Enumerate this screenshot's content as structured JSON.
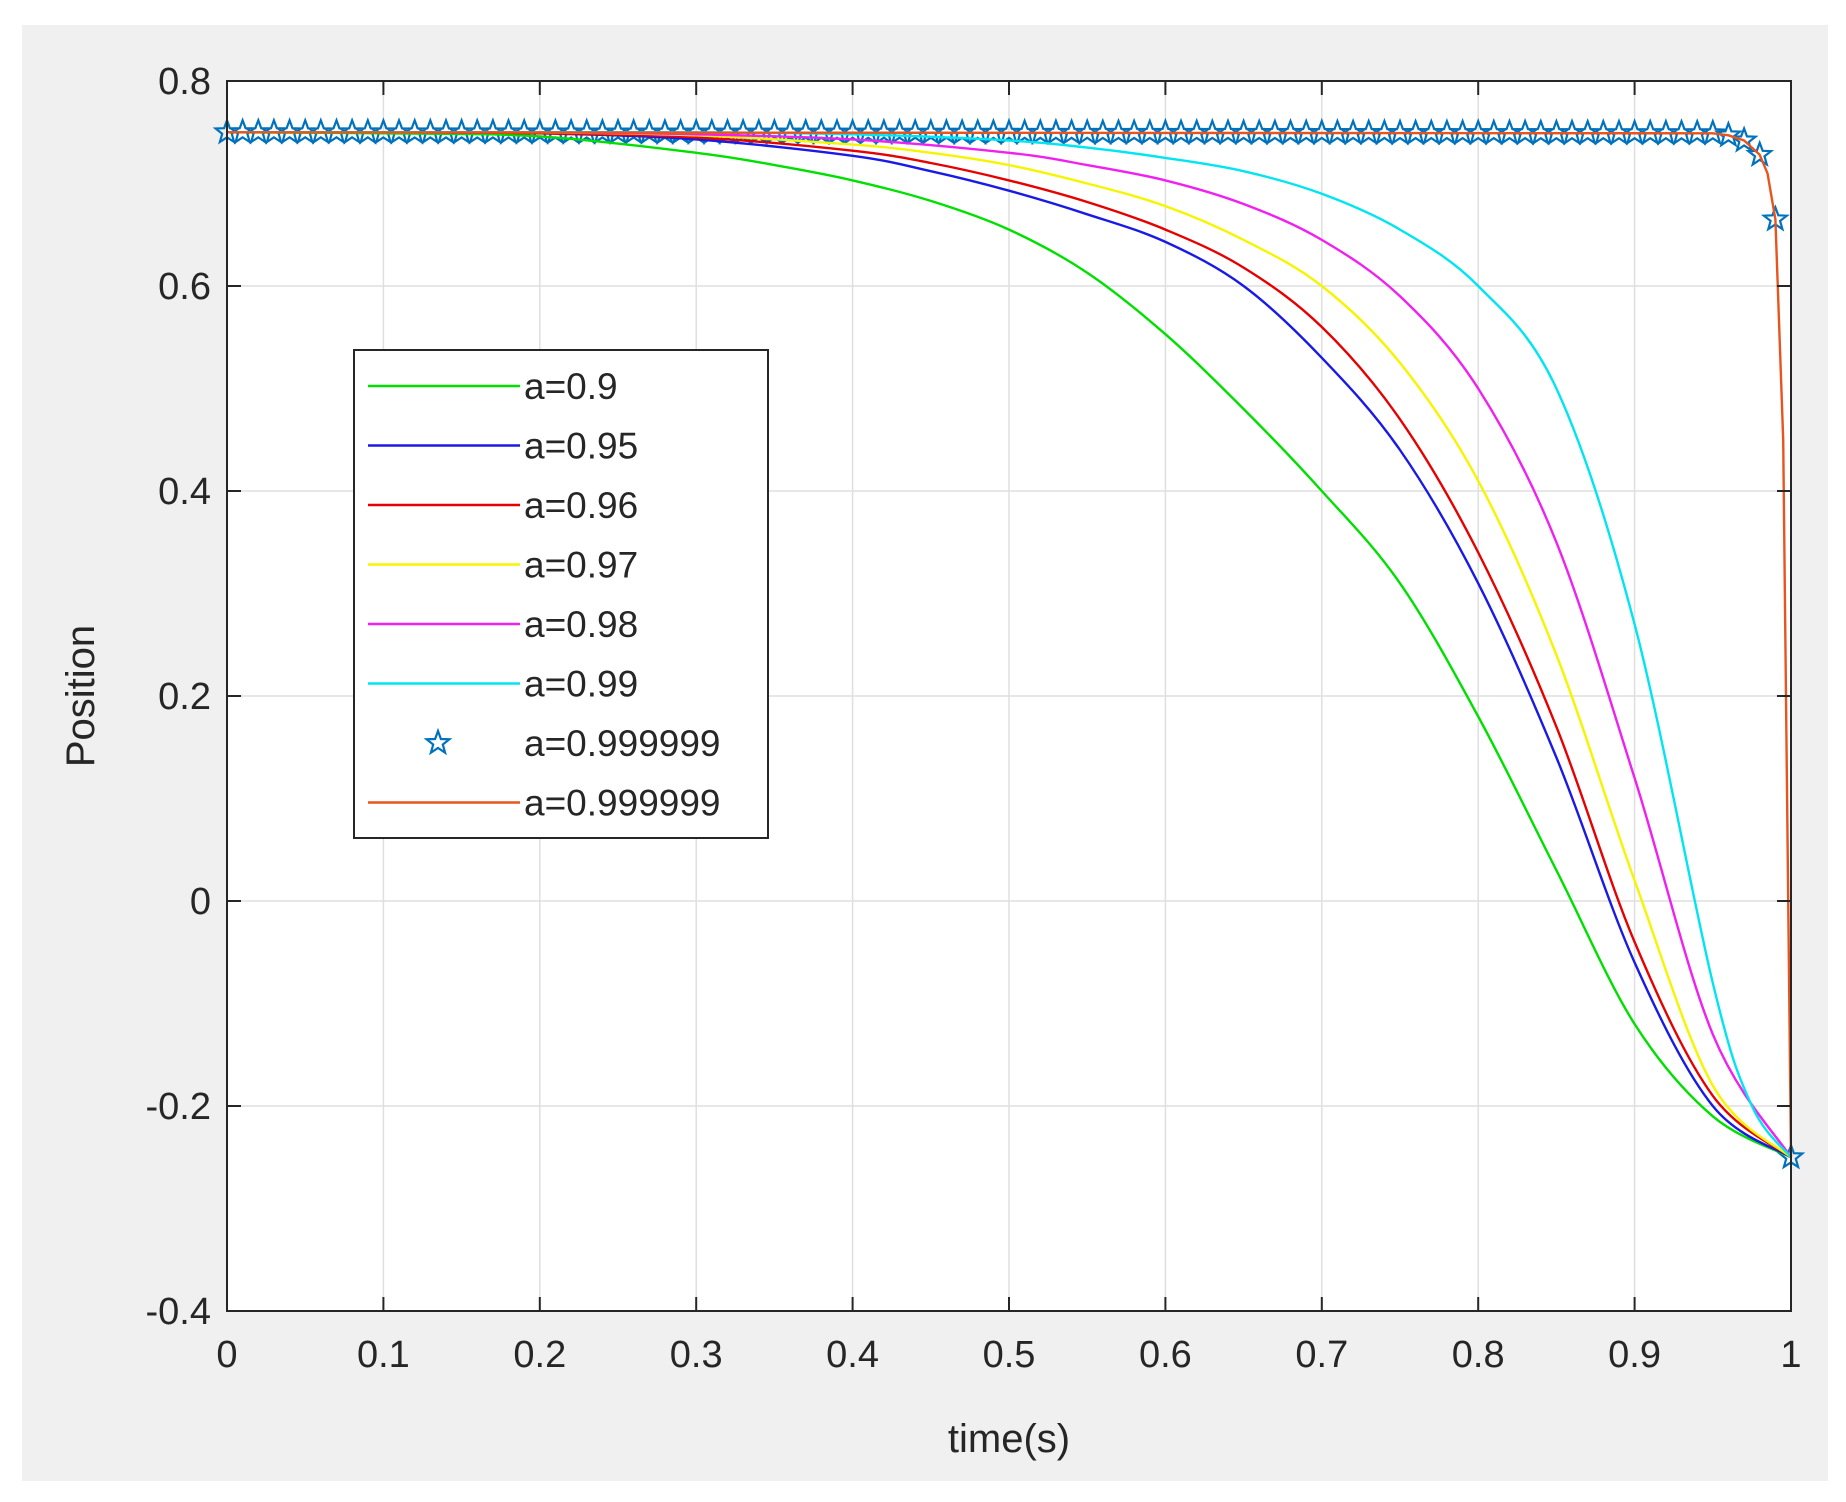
{
  "chart_data": {
    "type": "line",
    "title": "",
    "xlabel": "time(s)",
    "ylabel": "Position",
    "xlim": [
      0,
      1
    ],
    "ylim": [
      -0.4,
      0.8
    ],
    "x_ticks": [
      0,
      0.1,
      0.2,
      0.3,
      0.4,
      0.5,
      0.6,
      0.7,
      0.8,
      0.9,
      1
    ],
    "x_tick_labels": [
      "0",
      "0.1",
      "0.2",
      "0.3",
      "0.4",
      "0.5",
      "0.6",
      "0.7",
      "0.8",
      "0.9",
      "1"
    ],
    "y_ticks": [
      -0.4,
      -0.2,
      0,
      0.2,
      0.4,
      0.6,
      0.8
    ],
    "y_tick_labels": [
      "-0.4",
      "-0.2",
      "0",
      "0.2",
      "0.4",
      "0.6",
      "0.8"
    ],
    "grid": true,
    "legend_position": "center-left",
    "series": [
      {
        "name": "a=0.9",
        "color": "#00e000",
        "marker": "none",
        "x": [
          0,
          0.1,
          0.2,
          0.3,
          0.35,
          0.4,
          0.45,
          0.5,
          0.55,
          0.6,
          0.65,
          0.7,
          0.75,
          0.8,
          0.85,
          0.9,
          0.95,
          1
        ],
        "y": [
          0.75,
          0.749,
          0.746,
          0.73,
          0.718,
          0.703,
          0.683,
          0.655,
          0.613,
          0.553,
          0.48,
          0.4,
          0.31,
          0.18,
          0.03,
          -0.12,
          -0.21,
          -0.25
        ]
      },
      {
        "name": "a=0.95",
        "color": "#1a1ae6",
        "marker": "none",
        "x": [
          0,
          0.1,
          0.2,
          0.3,
          0.4,
          0.45,
          0.5,
          0.55,
          0.6,
          0.65,
          0.7,
          0.75,
          0.8,
          0.85,
          0.9,
          0.95,
          1
        ],
        "y": [
          0.75,
          0.75,
          0.749,
          0.743,
          0.727,
          0.712,
          0.693,
          0.67,
          0.643,
          0.6,
          0.53,
          0.44,
          0.31,
          0.14,
          -0.06,
          -0.2,
          -0.25
        ]
      },
      {
        "name": "a=0.96",
        "color": "#e60000",
        "marker": "none",
        "x": [
          0,
          0.1,
          0.2,
          0.3,
          0.4,
          0.45,
          0.5,
          0.55,
          0.6,
          0.65,
          0.7,
          0.75,
          0.8,
          0.85,
          0.9,
          0.95,
          1
        ],
        "y": [
          0.75,
          0.75,
          0.749,
          0.745,
          0.732,
          0.72,
          0.703,
          0.682,
          0.655,
          0.618,
          0.56,
          0.47,
          0.34,
          0.17,
          -0.04,
          -0.19,
          -0.25
        ]
      },
      {
        "name": "a=0.97",
        "color": "#f5f500",
        "marker": "none",
        "x": [
          0,
          0.1,
          0.2,
          0.3,
          0.4,
          0.45,
          0.5,
          0.55,
          0.6,
          0.65,
          0.7,
          0.75,
          0.8,
          0.85,
          0.9,
          0.95,
          1
        ],
        "y": [
          0.75,
          0.75,
          0.75,
          0.747,
          0.738,
          0.73,
          0.718,
          0.7,
          0.678,
          0.645,
          0.6,
          0.525,
          0.41,
          0.24,
          0.02,
          -0.18,
          -0.25
        ]
      },
      {
        "name": "a=0.98",
        "color": "#f020f0",
        "marker": "none",
        "x": [
          0,
          0.1,
          0.2,
          0.3,
          0.4,
          0.5,
          0.55,
          0.6,
          0.65,
          0.7,
          0.75,
          0.8,
          0.85,
          0.9,
          0.95,
          1
        ],
        "y": [
          0.75,
          0.75,
          0.75,
          0.748,
          0.743,
          0.73,
          0.718,
          0.703,
          0.68,
          0.645,
          0.59,
          0.5,
          0.35,
          0.12,
          -0.13,
          -0.25
        ]
      },
      {
        "name": "a=0.99",
        "color": "#00e5f0",
        "marker": "none",
        "x": [
          0,
          0.1,
          0.2,
          0.3,
          0.4,
          0.5,
          0.55,
          0.6,
          0.65,
          0.7,
          0.75,
          0.8,
          0.85,
          0.9,
          0.95,
          0.975,
          1
        ],
        "y": [
          0.75,
          0.75,
          0.75,
          0.75,
          0.748,
          0.742,
          0.735,
          0.725,
          0.712,
          0.69,
          0.655,
          0.6,
          0.5,
          0.27,
          -0.08,
          -0.2,
          -0.25
        ]
      },
      {
        "name": "a=0.999999",
        "color": "#0072bd",
        "marker": "star",
        "line": "none",
        "x": [
          0,
          0.95,
          0.96,
          0.97,
          0.98,
          0.99,
          1
        ],
        "y": [
          0.75,
          0.749,
          0.747,
          0.742,
          0.728,
          0.665,
          -0.25
        ],
        "marker_spacing": 0.01
      },
      {
        "name": "a=0.999999",
        "color": "#e8541e",
        "marker": "none",
        "x": [
          0,
          0.95,
          0.96,
          0.97,
          0.98,
          0.985,
          0.99,
          0.995,
          1
        ],
        "y": [
          0.75,
          0.749,
          0.747,
          0.742,
          0.728,
          0.71,
          0.665,
          0.45,
          -0.25
        ]
      }
    ]
  }
}
